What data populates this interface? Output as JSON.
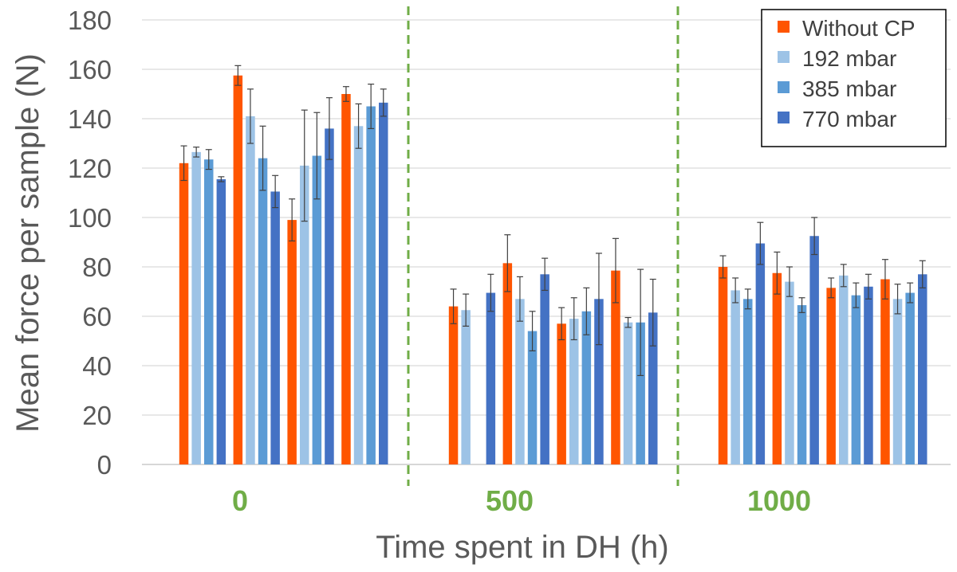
{
  "chart_data": {
    "type": "bar",
    "xlabel": "Time spent in DH (h)",
    "ylabel": "Mean force per sample (N)",
    "ylim": [
      0,
      180
    ],
    "yticks": [
      0,
      20,
      40,
      60,
      80,
      100,
      120,
      140,
      160,
      180
    ],
    "grid": true,
    "legend_position": "top-right",
    "groups": [
      "0",
      "500",
      "1000"
    ],
    "group_divider_style": "dashed green vertical lines between groups",
    "clusters_per_group": 4,
    "series": [
      {
        "name": "Without CP",
        "color": "#ff5500",
        "values": [
          122,
          157.5,
          99,
          150,
          64,
          81.5,
          57,
          78.5,
          80,
          77.5,
          71.5,
          75
        ],
        "errors": [
          7,
          4,
          8.5,
          3,
          7,
          11.5,
          6.5,
          13,
          4.5,
          8.5,
          4,
          8
        ]
      },
      {
        "name": "192 mbar",
        "color": "#9dc3e6",
        "values": [
          126.5,
          141,
          121,
          137,
          62.5,
          67,
          59,
          57.5,
          70.5,
          74,
          76.5,
          67
        ],
        "errors": [
          2,
          11,
          22.5,
          9,
          6.5,
          9,
          8.5,
          2,
          5,
          6,
          4.5,
          6
        ]
      },
      {
        "name": "385 mbar",
        "color": "#5b9bd5",
        "values": [
          123.5,
          124,
          125,
          145,
          null,
          54,
          62,
          57.5,
          67,
          64.5,
          68.5,
          69.5
        ],
        "errors": [
          4,
          13,
          17.5,
          9,
          null,
          8,
          9.5,
          21.5,
          4,
          3,
          5,
          4
        ]
      },
      {
        "name": "770 mbar",
        "color": "#4472c4",
        "values": [
          115.5,
          110.5,
          136,
          146.5,
          69.5,
          77,
          67,
          61.5,
          89.5,
          92.5,
          72,
          77
        ],
        "errors": [
          1,
          6.5,
          12.5,
          5.5,
          7.5,
          6.5,
          18.5,
          13.5,
          8.5,
          7.5,
          5,
          5.5
        ]
      }
    ]
  }
}
